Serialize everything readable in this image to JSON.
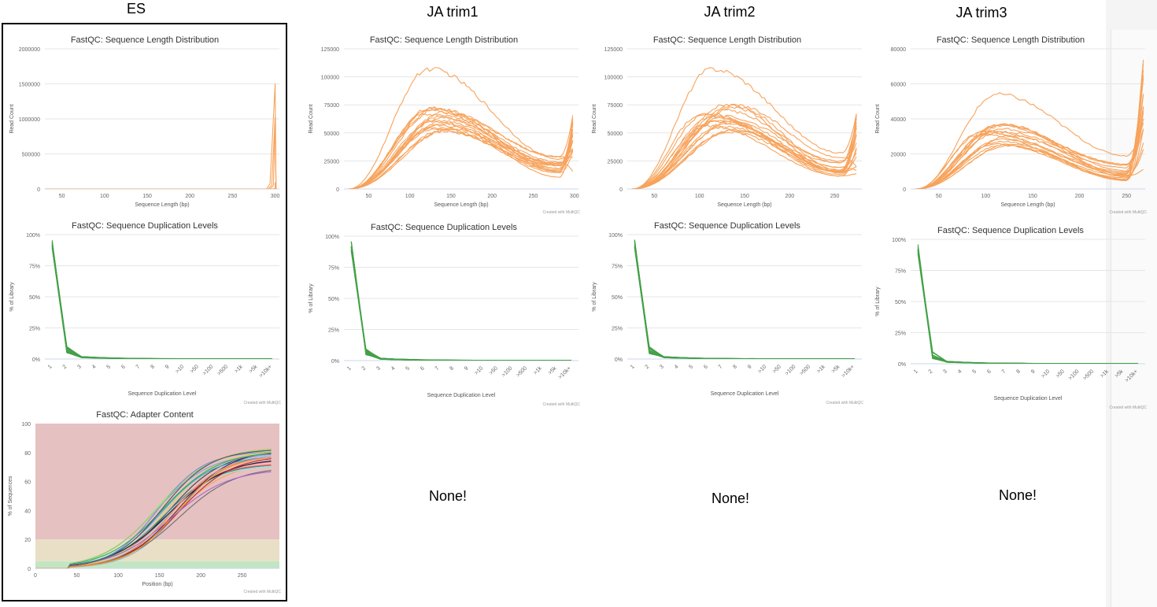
{
  "columns": [
    {
      "key": "es",
      "title": "ES"
    },
    {
      "key": "ja1",
      "title": "JA trim1"
    },
    {
      "key": "ja2",
      "title": "JA trim2"
    },
    {
      "key": "ja3",
      "title": "JA trim3"
    }
  ],
  "none_label": "None!",
  "colors": {
    "length": "#f7a35c",
    "dup": "#43a047",
    "adapter_red": "#e6c1c1",
    "adapter_yellow": "#e9dfc6",
    "adapter_green": "#c2e6c4"
  },
  "chart_data": [
    {
      "id": "es-len",
      "type": "line",
      "title": "FastQC: Sequence Length Distribution",
      "xlabel": "Sequence Length (bp)",
      "ylabel": "Read Count",
      "xlim": [
        30,
        305
      ],
      "ylim": [
        0,
        2000000
      ],
      "xticks": [
        "50",
        "100",
        "150",
        "200",
        "250",
        "300"
      ],
      "yticks": [
        "0",
        "500000",
        "1000000",
        "1500000",
        "2000000"
      ],
      "credit": "",
      "series_profile": {
        "shape": "spike",
        "count": 4,
        "peaks": [
          1500000,
          1030000,
          980000,
          90000
        ]
      }
    },
    {
      "id": "ja1-len",
      "type": "line",
      "title": "FastQC: Sequence Length Distribution",
      "xlabel": "Sequence Length (bp)",
      "ylabel": "Read Count",
      "xlim": [
        20,
        305
      ],
      "ylim": [
        0,
        125000
      ],
      "xticks": [
        "50",
        "100",
        "150",
        "200",
        "250",
        "300"
      ],
      "yticks": [
        "0",
        "25000",
        "50000",
        "75000",
        "100000",
        "125000"
      ],
      "credit": "Created with MultiQC",
      "series_profile": {
        "shape": "hump",
        "count": 18,
        "peak_x": [
          120,
          150
        ],
        "peak_y": [
          50000,
          107000
        ],
        "end_x": 300,
        "tail_y": [
          10000,
          77000
        ]
      }
    },
    {
      "id": "ja2-len",
      "type": "line",
      "title": "FastQC: Sequence Length Distribution",
      "xlabel": "Sequence Length (bp)",
      "ylabel": "Read Count",
      "xlim": [
        20,
        280
      ],
      "ylim": [
        0,
        125000
      ],
      "xticks": [
        "50",
        "100",
        "150",
        "200",
        "250"
      ],
      "yticks": [
        "0",
        "25000",
        "50000",
        "75000",
        "100000",
        "125000"
      ],
      "credit": "",
      "series_profile": {
        "shape": "hump",
        "count": 18,
        "peak_x": [
          100,
          140
        ],
        "peak_y": [
          50000,
          107000
        ],
        "end_x": 275,
        "tail_y": [
          10000,
          77000
        ]
      }
    },
    {
      "id": "ja3-len",
      "type": "line",
      "title": "FastQC: Sequence Length Distribution",
      "xlabel": "Sequence Length (bp)",
      "ylabel": "Read Count",
      "xlim": [
        20,
        270
      ],
      "ylim": [
        0,
        80000
      ],
      "xticks": [
        "50",
        "100",
        "150",
        "200",
        "250"
      ],
      "yticks": [
        "0",
        "20000",
        "40000",
        "60000",
        "80000"
      ],
      "credit": "Created with MultiQC",
      "series_profile": {
        "shape": "hump",
        "count": 18,
        "peak_x": [
          90,
          130
        ],
        "peak_y": [
          24000,
          54000
        ],
        "end_x": 268,
        "tail_y": [
          10000,
          75000
        ]
      }
    },
    {
      "id": "es-dup",
      "type": "line",
      "title": "FastQC: Sequence Duplication Levels",
      "xlabel": "Sequence Duplication Level",
      "ylabel": "% of Library",
      "ylim": [
        0,
        100
      ],
      "categories": [
        "1",
        "2",
        "3",
        "4",
        "5",
        "6",
        "7",
        "8",
        "9",
        ">10",
        ">50",
        ">100",
        ">500",
        ">1k",
        ">5k",
        ">10k+"
      ],
      "yticks": [
        "0%",
        "25%",
        "50%",
        "75%",
        "100%"
      ],
      "credit": "Created with MultiQC",
      "series_profile": {
        "count": 16,
        "first": [
          88,
          96
        ],
        "second": [
          4,
          10
        ],
        "third": [
          1,
          2
        ]
      }
    },
    {
      "id": "ja1-dup",
      "type": "line",
      "title": "FastQC: Sequence Duplication Levels",
      "xlabel": "Sequence Duplication Level",
      "ylabel": "% of Library",
      "ylim": [
        0,
        100
      ],
      "categories": [
        "1",
        "2",
        "3",
        "4",
        "5",
        "6",
        "7",
        "8",
        "9",
        ">10",
        ">50",
        ">100",
        ">500",
        ">1k",
        ">5k",
        ">10k+"
      ],
      "yticks": [
        "0%",
        "25%",
        "50%",
        "75%",
        "100%"
      ],
      "credit": "Created with MultiQC",
      "series_profile": {
        "count": 16,
        "first": [
          88,
          96
        ],
        "second": [
          4,
          10
        ],
        "third": [
          1,
          2
        ]
      }
    },
    {
      "id": "ja2-dup",
      "type": "line",
      "title": "FastQC: Sequence Duplication Levels",
      "xlabel": "Sequence Duplication Level",
      "ylabel": "% of Library",
      "ylim": [
        0,
        100
      ],
      "categories": [
        "1",
        "2",
        "3",
        "4",
        "5",
        "6",
        "7",
        "8",
        "9",
        ">10",
        ">50",
        ">100",
        ">500",
        ">1k",
        ">5k",
        ">10k+"
      ],
      "yticks": [
        "0%",
        "25%",
        "50%",
        "75%",
        "100%"
      ],
      "credit": "Created with MultiQC",
      "series_profile": {
        "count": 16,
        "first": [
          88,
          96
        ],
        "second": [
          4,
          10
        ],
        "third": [
          1,
          2
        ]
      }
    },
    {
      "id": "ja3-dup",
      "type": "line",
      "title": "FastQC: Sequence Duplication Levels",
      "xlabel": "Sequence Duplication Level",
      "ylabel": "% of Library",
      "ylim": [
        0,
        100
      ],
      "categories": [
        "1",
        "2",
        "3",
        "4",
        "5",
        "6",
        "7",
        "8",
        "9",
        ">10",
        ">50",
        ">100",
        ">500",
        ">1k",
        ">5k",
        ">10k+"
      ],
      "yticks": [
        "0%",
        "25%",
        "50%",
        "75%",
        "100%"
      ],
      "credit": "Created with MultiQC",
      "series_profile": {
        "count": 16,
        "first": [
          88,
          96
        ],
        "second": [
          4,
          10
        ],
        "third": [
          1,
          2
        ]
      }
    },
    {
      "id": "es-adapter",
      "type": "line",
      "title": "FastQC: Adapter Content",
      "xlabel": "Position (bp)",
      "ylabel": "% of Sequences",
      "xlim": [
        0,
        295
      ],
      "ylim": [
        0,
        100
      ],
      "xticks": [
        "0",
        "50",
        "100",
        "150",
        "200",
        "250"
      ],
      "yticks": [
        "0",
        "20",
        "40",
        "60",
        "80",
        "100"
      ],
      "bands": [
        {
          "from": 0,
          "to": 5,
          "color": "green"
        },
        {
          "from": 5,
          "to": 20,
          "color": "yellow"
        },
        {
          "from": 20,
          "to": 100,
          "color": "red"
        }
      ],
      "credit": "Created with MultiQC",
      "series_profile": {
        "shape": "sigmoid",
        "count": 22,
        "plateau": [
          68,
          85
        ],
        "midpoint": [
          145,
          175
        ]
      }
    }
  ]
}
